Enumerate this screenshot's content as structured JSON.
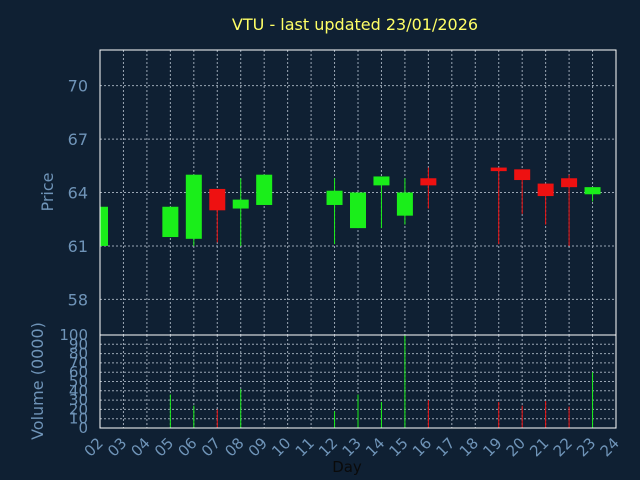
{
  "chart_data": {
    "type": "candlestick",
    "title": "VTU - last updated 23/01/2026",
    "xlabel": "Day",
    "price_panel": {
      "ylabel": "Price",
      "ylim": [
        56,
        72
      ],
      "yticks": [
        58,
        61,
        64,
        67,
        70
      ],
      "grid": true
    },
    "volume_panel": {
      "ylabel": "Volume (0000)",
      "ylim": [
        0,
        100
      ],
      "yticks": [
        0,
        10,
        20,
        30,
        40,
        50,
        60,
        70,
        80,
        90,
        100
      ],
      "grid": true
    },
    "x_ticks": [
      "02",
      "03",
      "04",
      "05",
      "06",
      "07",
      "08",
      "09",
      "10",
      "11",
      "12",
      "13",
      "14",
      "15",
      "16",
      "17",
      "18",
      "19",
      "20",
      "21",
      "22",
      "23",
      "24"
    ],
    "candles": [
      {
        "day": "02",
        "open": 61.0,
        "high": 63.2,
        "low": 61.0,
        "close": 63.2,
        "volume": 0
      },
      {
        "day": "05",
        "open": 61.5,
        "high": 63.2,
        "low": 61.5,
        "close": 63.2,
        "volume": 36
      },
      {
        "day": "06",
        "open": 61.4,
        "high": 65.0,
        "low": 61.0,
        "close": 65.0,
        "volume": 24
      },
      {
        "day": "07",
        "open": 64.2,
        "high": 64.2,
        "low": 61.2,
        "close": 63.0,
        "volume": 20
      },
      {
        "day": "08",
        "open": 63.1,
        "high": 64.8,
        "low": 61.0,
        "close": 63.6,
        "volume": 42
      },
      {
        "day": "09",
        "open": 63.3,
        "high": 65.0,
        "low": 63.3,
        "close": 65.0,
        "volume": 0
      },
      {
        "day": "12",
        "open": 63.3,
        "high": 64.8,
        "low": 61.1,
        "close": 64.1,
        "volume": 18
      },
      {
        "day": "13",
        "open": 62.0,
        "high": 64.0,
        "low": 62.0,
        "close": 64.0,
        "volume": 36
      },
      {
        "day": "14",
        "open": 64.4,
        "high": 64.9,
        "low": 62.0,
        "close": 64.9,
        "volume": 28
      },
      {
        "day": "15",
        "open": 62.7,
        "high": 64.8,
        "low": 62.2,
        "close": 64.0,
        "volume": 100
      },
      {
        "day": "16",
        "open": 64.8,
        "high": 65.4,
        "low": 63.1,
        "close": 64.4,
        "volume": 30
      },
      {
        "day": "19",
        "open": 65.4,
        "high": 65.4,
        "low": 61.1,
        "close": 65.2,
        "volume": 28
      },
      {
        "day": "20",
        "open": 65.3,
        "high": 65.3,
        "low": 62.8,
        "close": 64.7,
        "volume": 24
      },
      {
        "day": "21",
        "open": 64.5,
        "high": 64.5,
        "low": 62.2,
        "close": 63.8,
        "volume": 29
      },
      {
        "day": "22",
        "open": 64.8,
        "high": 65.0,
        "low": 61.0,
        "close": 64.3,
        "volume": 23
      },
      {
        "day": "23",
        "open": 63.9,
        "high": 64.3,
        "low": 63.5,
        "close": 64.3,
        "volume": 60
      }
    ],
    "colors": {
      "background": "#0f2033",
      "title": "#ffff66",
      "axis_text": "#6f94b8",
      "frame": "#ffffff",
      "grid": "#9aa6b4",
      "up": "#1aee1a",
      "down": "#ee1111"
    }
  }
}
